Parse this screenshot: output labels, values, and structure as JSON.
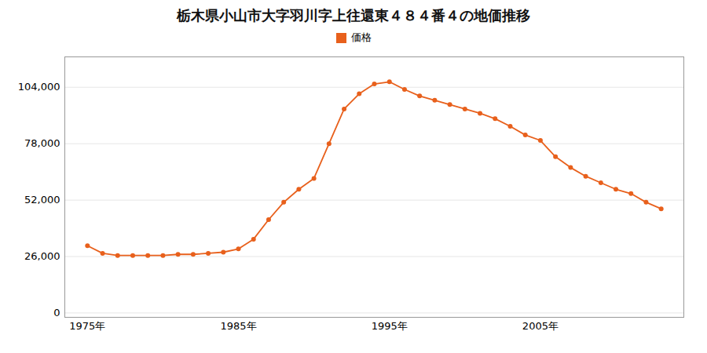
{
  "chart_data": {
    "type": "line",
    "title": "栃木県小山市大字羽川字上往還東４８４番４の地価推移",
    "x": [
      1975,
      1976,
      1977,
      1978,
      1979,
      1980,
      1981,
      1982,
      1983,
      1984,
      1985,
      1986,
      1987,
      1988,
      1989,
      1990,
      1991,
      1992,
      1993,
      1994,
      1995,
      1996,
      1997,
      1998,
      1999,
      2000,
      2001,
      2002,
      2003,
      2004,
      2005,
      2006,
      2007,
      2008,
      2009,
      2010,
      2011,
      2012,
      2013
    ],
    "series": [
      {
        "name": "価格",
        "color": "#e8601c",
        "marker": "circle",
        "values": [
          31000,
          27500,
          26500,
          26500,
          26500,
          26500,
          27000,
          27000,
          27500,
          28000,
          29500,
          34000,
          43000,
          51000,
          57000,
          62000,
          78000,
          94000,
          101000,
          105500,
          106500,
          103000,
          100000,
          98000,
          96000,
          94000,
          92000,
          89500,
          86000,
          82000,
          79500,
          72000,
          67000,
          63000,
          60000,
          57000,
          55000,
          51000,
          48000
        ]
      }
    ],
    "xlim": [
      1973.5,
      2014.5
    ],
    "xticks": [
      {
        "value": 1975,
        "label": "1975年"
      },
      {
        "value": 1985,
        "label": "1985年"
      },
      {
        "value": 1995,
        "label": "1995年"
      },
      {
        "value": 2005,
        "label": "2005年"
      }
    ],
    "ylim": [
      -2000,
      118000
    ],
    "yticks": [
      0,
      {
        "value": 26000,
        "label": "26,000"
      },
      {
        "value": 52000,
        "label": "52,000"
      },
      {
        "value": 78000,
        "label": "78,000"
      },
      {
        "value": 104000,
        "label": "104,000"
      }
    ],
    "grid": "y",
    "legend": "top"
  }
}
